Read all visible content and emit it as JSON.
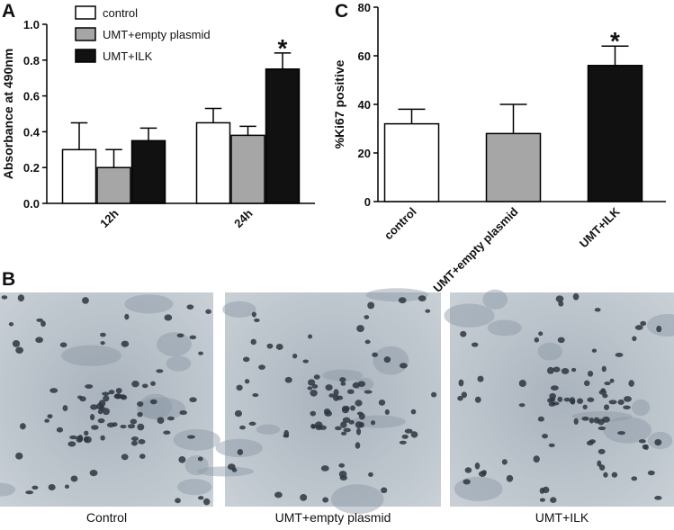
{
  "panel_labels": [
    "A",
    "B",
    "C"
  ],
  "chart_data": [
    {
      "type": "bar",
      "ylabel": "Absorbance at 490nm",
      "categories": [
        "12h",
        "24h"
      ],
      "series": [
        {
          "name": "control",
          "color": "#ffffff",
          "values": [
            0.3,
            0.45
          ],
          "errors": [
            0.15,
            0.08
          ]
        },
        {
          "name": "UMT+empty plasmid",
          "color": "#a6a6a6",
          "values": [
            0.2,
            0.38
          ],
          "errors": [
            0.1,
            0.05
          ]
        },
        {
          "name": "UMT+ILK",
          "color": "#111111",
          "values": [
            0.35,
            0.75
          ],
          "errors": [
            0.07,
            0.09
          ]
        }
      ],
      "ylim": [
        0,
        1.0
      ],
      "yticks": [
        {
          "value": 0,
          "label": "0.0"
        },
        {
          "value": 0.2,
          "label": "0.2"
        },
        {
          "value": 0.4,
          "label": "0.4"
        },
        {
          "value": 0.6,
          "label": "0.6"
        },
        {
          "value": 0.8,
          "label": "0.8"
        },
        {
          "value": 1.0,
          "label": "1.0"
        }
      ],
      "legend": "upper left",
      "annotations": [
        {
          "text": "*",
          "x": "24h",
          "series": "UMT+ILK",
          "y": 0.84
        }
      ]
    },
    {
      "type": "bar",
      "ylabel": "%Ki67 positive",
      "categories": [
        "control",
        "UMT+empty plasmid",
        "UMT+ILK"
      ],
      "values": [
        32,
        28,
        56
      ],
      "errors": [
        6,
        12,
        8
      ],
      "colors": [
        "#ffffff",
        "#a6a6a6",
        "#111111"
      ],
      "ylim": [
        0,
        80
      ],
      "yticks": [
        0,
        20,
        40,
        60,
        80
      ],
      "annotations": [
        {
          "text": "*",
          "x": "UMT+ILK",
          "y": 64
        }
      ]
    }
  ],
  "micrographs": [
    {
      "caption": "Control"
    },
    {
      "caption": "UMT+empty plasmid"
    },
    {
      "caption": "UMT+ILK"
    }
  ]
}
